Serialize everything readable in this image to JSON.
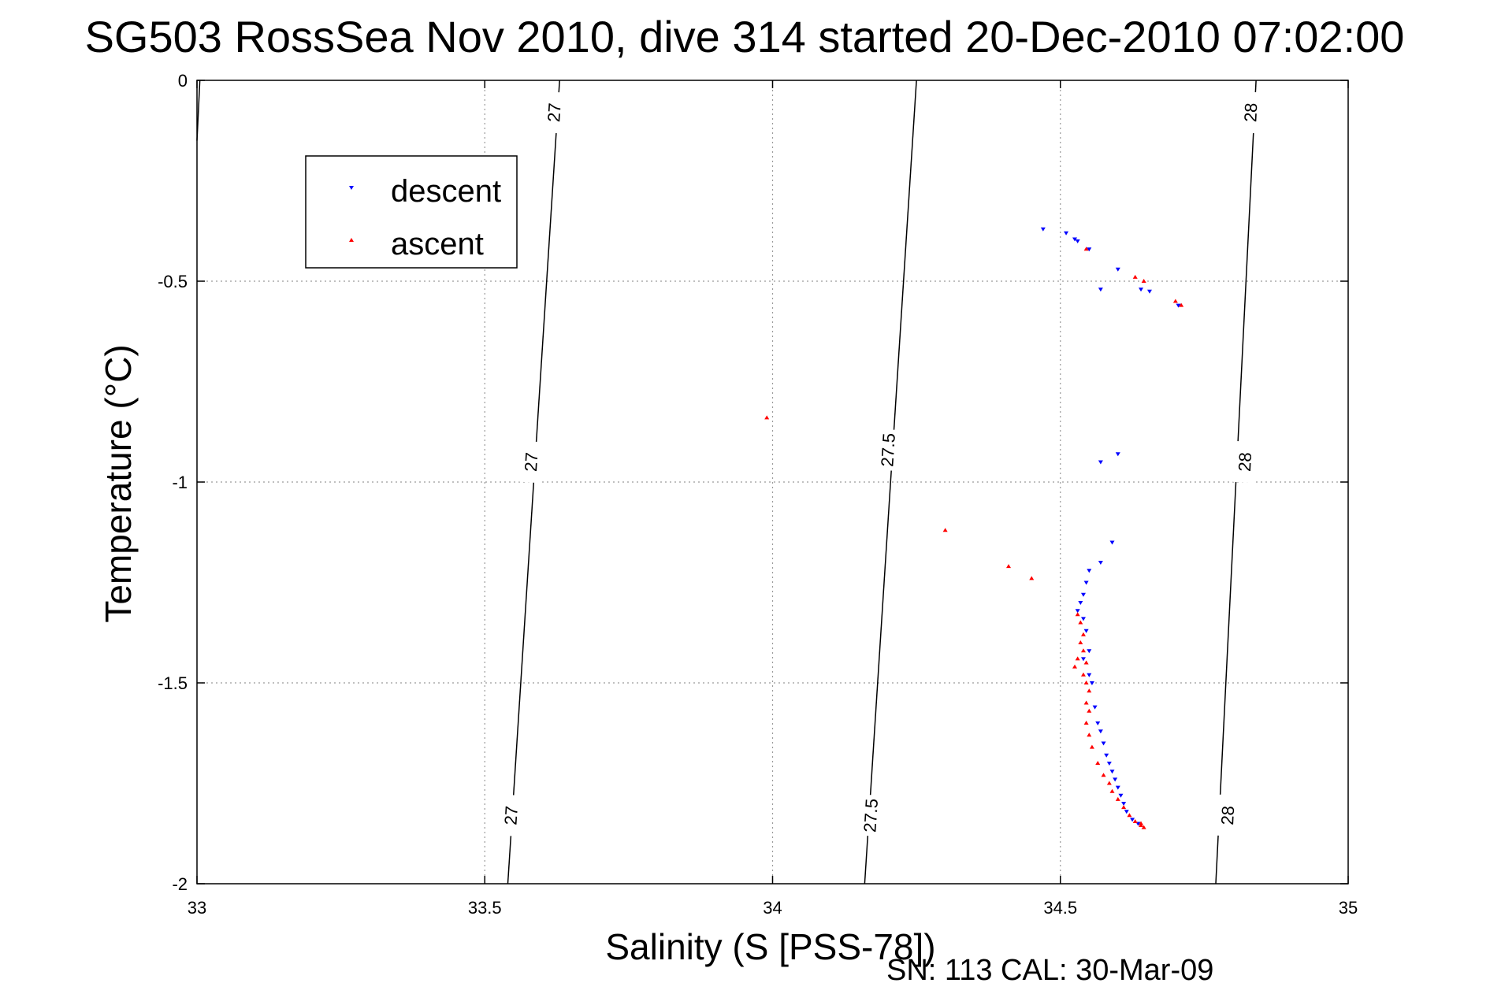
{
  "chart_data": {
    "type": "scatter",
    "title": "SG503 RossSea Nov 2010, dive 314 started 20-Dec-2010 07:02:00",
    "xlabel": "Salinity (S [PSS-78])",
    "ylabel": "Temperature (°C)",
    "xlim": [
      33,
      35
    ],
    "ylim": [
      -2,
      0
    ],
    "xticks": [
      33,
      33.5,
      34,
      34.5,
      35
    ],
    "xtick_labels": [
      "33",
      "33.5",
      "34",
      "34.5",
      "35"
    ],
    "yticks": [
      0,
      -0.5,
      -1,
      -1.5,
      -2
    ],
    "ytick_labels": [
      "0",
      "-0.5",
      "-1",
      "-1.5",
      "-2"
    ],
    "grid": true,
    "legend_position": "top-left",
    "footer": "SN: 113  CAL: 30-Mar-09",
    "colors": {
      "descent": "#0000ff",
      "ascent": "#ff0000",
      "axes": "#000000"
    },
    "series": [
      {
        "name": "descent",
        "marker": "triangle-down",
        "color": "#0000ff",
        "points": [
          [
            34.47,
            -0.37
          ],
          [
            34.51,
            -0.38
          ],
          [
            34.525,
            -0.395
          ],
          [
            34.53,
            -0.4
          ],
          [
            34.55,
            -0.42
          ],
          [
            34.6,
            -0.47
          ],
          [
            34.57,
            -0.52
          ],
          [
            34.64,
            -0.52
          ],
          [
            34.655,
            -0.525
          ],
          [
            34.705,
            -0.56
          ],
          [
            34.6,
            -0.93
          ],
          [
            34.57,
            -0.95
          ],
          [
            34.59,
            -1.15
          ],
          [
            34.57,
            -1.2
          ],
          [
            34.55,
            -1.22
          ],
          [
            34.545,
            -1.25
          ],
          [
            34.54,
            -1.28
          ],
          [
            34.535,
            -1.3
          ],
          [
            34.53,
            -1.32
          ],
          [
            34.54,
            -1.34
          ],
          [
            34.545,
            -1.37
          ],
          [
            34.55,
            -1.42
          ],
          [
            34.54,
            -1.44
          ],
          [
            34.55,
            -1.48
          ],
          [
            34.555,
            -1.5
          ],
          [
            34.56,
            -1.56
          ],
          [
            34.565,
            -1.6
          ],
          [
            34.57,
            -1.62
          ],
          [
            34.575,
            -1.65
          ],
          [
            34.58,
            -1.68
          ],
          [
            34.585,
            -1.7
          ],
          [
            34.59,
            -1.72
          ],
          [
            34.595,
            -1.74
          ],
          [
            34.6,
            -1.76
          ],
          [
            34.605,
            -1.78
          ],
          [
            34.61,
            -1.8
          ],
          [
            34.615,
            -1.82
          ],
          [
            34.625,
            -1.84
          ],
          [
            34.635,
            -1.85
          ]
        ]
      },
      {
        "name": "ascent",
        "marker": "triangle-up",
        "color": "#ff0000",
        "points": [
          [
            34.545,
            -0.42
          ],
          [
            34.63,
            -0.49
          ],
          [
            34.645,
            -0.5
          ],
          [
            34.7,
            -0.55
          ],
          [
            34.71,
            -0.56
          ],
          [
            33.99,
            -0.84
          ],
          [
            34.3,
            -1.12
          ],
          [
            34.41,
            -1.21
          ],
          [
            34.45,
            -1.24
          ],
          [
            34.53,
            -1.33
          ],
          [
            34.535,
            -1.35
          ],
          [
            34.54,
            -1.38
          ],
          [
            34.535,
            -1.4
          ],
          [
            34.54,
            -1.42
          ],
          [
            34.53,
            -1.44
          ],
          [
            34.525,
            -1.46
          ],
          [
            34.545,
            -1.45
          ],
          [
            34.54,
            -1.48
          ],
          [
            34.545,
            -1.5
          ],
          [
            34.55,
            -1.52
          ],
          [
            34.545,
            -1.55
          ],
          [
            34.55,
            -1.57
          ],
          [
            34.545,
            -1.6
          ],
          [
            34.55,
            -1.63
          ],
          [
            34.555,
            -1.66
          ],
          [
            34.565,
            -1.7
          ],
          [
            34.575,
            -1.73
          ],
          [
            34.585,
            -1.75
          ],
          [
            34.59,
            -1.77
          ],
          [
            34.6,
            -1.79
          ],
          [
            34.61,
            -1.81
          ],
          [
            34.62,
            -1.83
          ],
          [
            34.63,
            -1.845
          ],
          [
            34.64,
            -1.855
          ],
          [
            34.645,
            -1.86
          ],
          [
            34.64,
            -1.85
          ]
        ]
      }
    ],
    "contours": [
      {
        "label": "27",
        "top": [
          33.63,
          0.0
        ],
        "bottom": [
          33.54,
          -2.0
        ],
        "label_positions": [
          [
            33.62,
            -0.08
          ],
          [
            33.58,
            -0.95
          ],
          [
            33.545,
            -1.83
          ]
        ]
      },
      {
        "label": "27.5",
        "top": [
          34.25,
          0.0
        ],
        "bottom": [
          34.16,
          -2.0
        ],
        "label_positions": [
          [
            34.2,
            -0.92
          ],
          [
            34.17,
            -1.83
          ]
        ]
      },
      {
        "label": "28",
        "top": [
          34.84,
          0.0
        ],
        "bottom": [
          34.77,
          -2.0
        ],
        "label_positions": [
          [
            34.83,
            -0.08
          ],
          [
            34.82,
            -0.95
          ],
          [
            34.79,
            -1.83
          ]
        ]
      },
      {
        "label": "",
        "top": [
          33.005,
          0.0
        ],
        "bottom": [
          33.0,
          -0.15
        ],
        "label_positions": []
      }
    ]
  }
}
